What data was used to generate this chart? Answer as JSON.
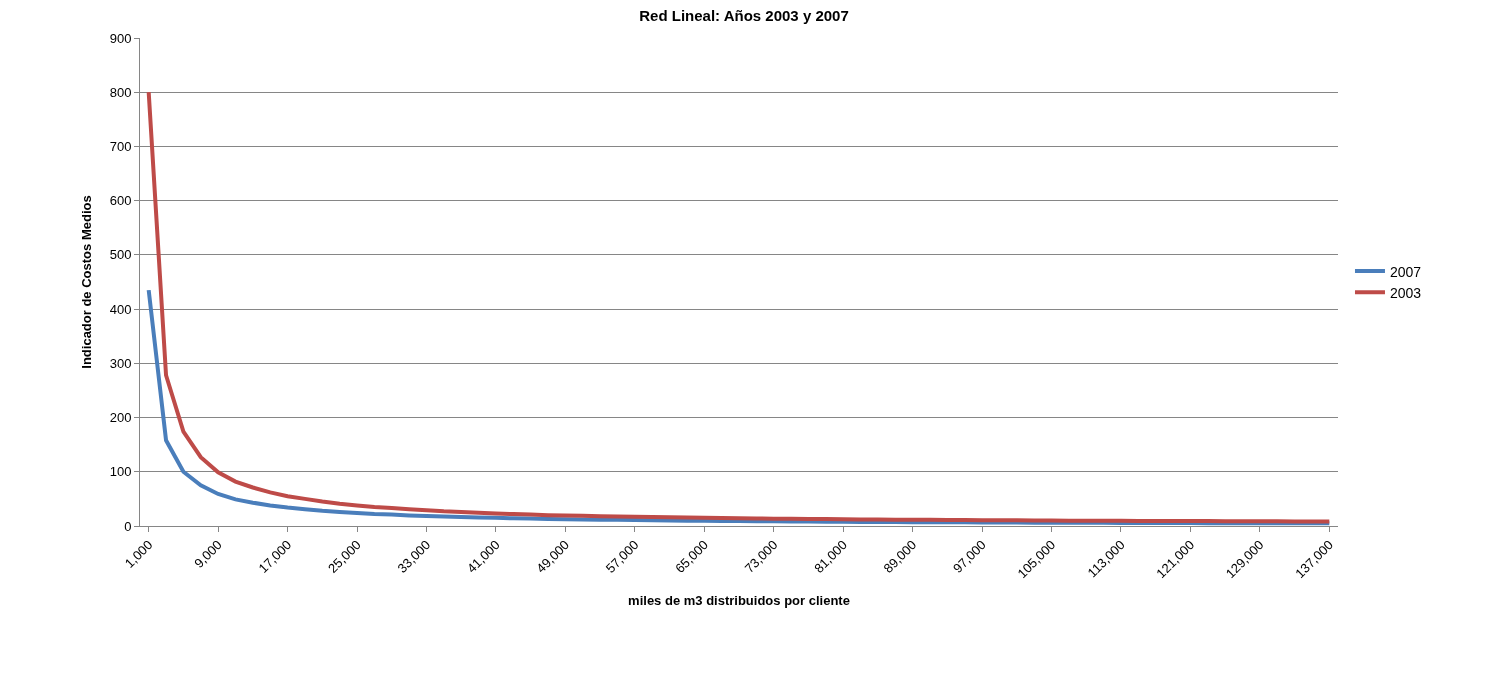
{
  "chart_data": {
    "type": "line",
    "title": "Red Lineal: Años 2003 y 2007",
    "xlabel": "miles de m3 distribuidos por cliente",
    "ylabel": "Indicador de Costos Medios",
    "categories": [
      "1,000",
      null,
      null,
      null,
      "9,000",
      null,
      null,
      null,
      "17,000",
      null,
      null,
      null,
      "25,000",
      null,
      null,
      null,
      "33,000",
      null,
      null,
      null,
      "41,000",
      null,
      null,
      null,
      "49,000",
      null,
      null,
      null,
      "57,000",
      null,
      null,
      null,
      "65,000",
      null,
      null,
      null,
      "73,000",
      null,
      null,
      null,
      "81,000",
      null,
      null,
      null,
      "89,000",
      null,
      null,
      null,
      "97,000",
      null,
      null,
      null,
      "105,000",
      null,
      null,
      null,
      "113,000",
      null,
      null,
      null,
      "121,000",
      null,
      null,
      null,
      "129,000",
      null,
      null,
      null,
      "137,000"
    ],
    "series": [
      {
        "name": "2007",
        "color": "#4a7ebb",
        "values": [
          435,
          158,
          100,
          75,
          59,
          49,
          43,
          38,
          34,
          31,
          28,
          26,
          24,
          22,
          21,
          19.5,
          18.5,
          17.5,
          16.5,
          15.7,
          15,
          14.3,
          13.7,
          13.1,
          12.6,
          12.1,
          11.7,
          11.3,
          10.9,
          10.5,
          10.2,
          9.9,
          9.6,
          9.3,
          9.1,
          8.8,
          8.6,
          8.4,
          8.2,
          8,
          7.8,
          7.6,
          7.4,
          7.3,
          7.1,
          7,
          6.8,
          6.7,
          6.6,
          6.4,
          6.3,
          6.2,
          6.1,
          6,
          5.9,
          5.8,
          5.7,
          5.6,
          5.5,
          5.4,
          5.35,
          5.3,
          5.2,
          5.15,
          5.1,
          5,
          4.95,
          4.9,
          4.85
        ]
      },
      {
        "name": "2003",
        "color": "#be4b48",
        "values": [
          800,
          278,
          174,
          127,
          99,
          82,
          71,
          62,
          55,
          50,
          45,
          41,
          38,
          35,
          33,
          31,
          29,
          27,
          26,
          24.5,
          23,
          22,
          21,
          20,
          19.5,
          19,
          18,
          17.5,
          17,
          16.5,
          16,
          15.5,
          15,
          14.6,
          14.3,
          14,
          13.6,
          13.3,
          13,
          12.7,
          12.4,
          12.2,
          12,
          11.7,
          11.5,
          11.3,
          11.1,
          10.9,
          10.7,
          10.5,
          10.4,
          10.2,
          10.1,
          9.9,
          9.8,
          9.6,
          9.5,
          9.4,
          9.3,
          9.2,
          9.1,
          9,
          8.9,
          8.8,
          8.7,
          8.6,
          8.5,
          8.4,
          8.3
        ]
      }
    ],
    "ylim": [
      0,
      900
    ],
    "yticks": [
      0,
      100,
      200,
      300,
      400,
      500,
      600,
      700,
      800,
      900
    ],
    "grid": "y",
    "legend": "right",
    "marker": "none",
    "line_style": "solid"
  }
}
